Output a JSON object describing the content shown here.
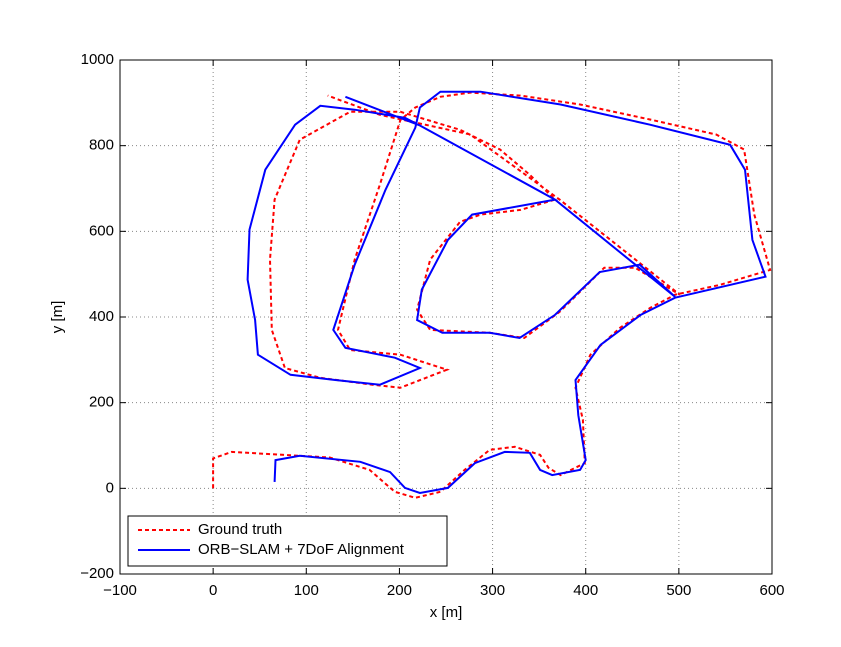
{
  "chart_data": {
    "type": "line",
    "xlabel": "x [m]",
    "ylabel": "y [m]",
    "xlim": [
      -100,
      600
    ],
    "xticks": [
      {
        "value": -100,
        "label": "−100"
      },
      0,
      100,
      200,
      300,
      400,
      500,
      600
    ],
    "ylim": [
      -200,
      1000
    ],
    "yticks": [
      {
        "value": -200,
        "label": "−200"
      },
      0,
      200,
      400,
      600,
      800,
      1000
    ],
    "grid": true,
    "legend": "lower left",
    "series": [
      {
        "name": "Ground truth",
        "color": "#ff0000",
        "line_style": "dotted",
        "x": [
          0,
          0,
          20,
          125,
          168,
          195,
          217,
          244,
          270,
          297,
          324,
          351,
          360,
          373,
          399,
          397,
          389,
          405,
          437,
          469,
          496,
          544,
          598,
          581,
          570,
          540,
          469,
          394,
          330,
          276,
          244,
          217,
          201,
          179,
          152,
          134,
          147,
          201,
          251,
          201,
          171,
          115,
          77,
          63,
          61,
          66,
          93,
          147,
          201,
          265,
          308,
          340,
          367,
          330,
          287,
          265,
          233,
          219,
          233,
          297,
          334,
          372,
          420,
          453,
          501,
          372,
          276,
          179,
          123
        ],
        "values": [
          0,
          70,
          85,
          72,
          43,
          -8,
          -22,
          -8,
          43,
          90,
          97,
          78,
          48,
          31,
          59,
          160,
          235,
          312,
          375,
          421,
          452,
          475,
          510,
          639,
          791,
          826,
          861,
          896,
          917,
          924,
          914,
          889,
          860,
          709,
          534,
          370,
          323,
          312,
          277,
          235,
          242,
          258,
          281,
          370,
          534,
          674,
          814,
          879,
          879,
          837,
          791,
          732,
          674,
          650,
          639,
          622,
          534,
          417,
          370,
          363,
          351,
          412,
          515,
          515,
          452,
          674,
          826,
          872,
          917
        ]
      },
      {
        "name": "ORB−SLAM + 7DoF Alignment",
        "color": "#0000ff",
        "line_style": "solid",
        "x": [
          66,
          67,
          93,
          158,
          190,
          206,
          222,
          252,
          281,
          313,
          340,
          351,
          364,
          394,
          400,
          392,
          389,
          416,
          459,
          496,
          593,
          579,
          571,
          555,
          469,
          373,
          287,
          244,
          222,
          217,
          185,
          152,
          129,
          142,
          195,
          222,
          179,
          131,
          83,
          48,
          45,
          37,
          39,
          56,
          88,
          115,
          152,
          206,
          222,
          367,
          278,
          252,
          224,
          219,
          246,
          297,
          329,
          367,
          415,
          458,
          496,
          367,
          222,
          142
        ],
        "values": [
          15,
          66,
          76,
          62,
          38,
          1,
          -11,
          1,
          59,
          85,
          83,
          43,
          31,
          43,
          66,
          171,
          253,
          335,
          405,
          445,
          494,
          580,
          744,
          802,
          849,
          896,
          926,
          926,
          889,
          842,
          697,
          522,
          370,
          328,
          305,
          281,
          242,
          253,
          265,
          312,
          393,
          487,
          604,
          744,
          849,
          893,
          884,
          865,
          847,
          674,
          639,
          580,
          464,
          393,
          363,
          363,
          351,
          405,
          505,
          522,
          447,
          674,
          847,
          914
        ]
      }
    ]
  }
}
